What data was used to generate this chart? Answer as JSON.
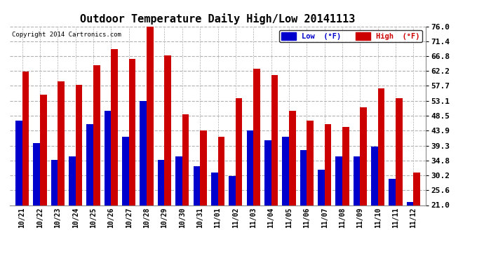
{
  "title": "Outdoor Temperature Daily High/Low 20141113",
  "copyright": "Copyright 2014 Cartronics.com",
  "legend_low": "Low  (°F)",
  "legend_high": "High  (°F)",
  "dates": [
    "10/21",
    "10/22",
    "10/23",
    "10/24",
    "10/25",
    "10/26",
    "10/27",
    "10/28",
    "10/29",
    "10/30",
    "10/31",
    "11/01",
    "11/02",
    "11/03",
    "11/04",
    "11/05",
    "11/06",
    "11/07",
    "11/08",
    "11/09",
    "11/10",
    "11/11",
    "11/12"
  ],
  "low": [
    47.0,
    40.0,
    35.0,
    36.0,
    46.0,
    50.0,
    42.0,
    53.0,
    35.0,
    36.0,
    33.0,
    31.0,
    30.0,
    44.0,
    41.0,
    42.0,
    38.0,
    32.0,
    36.0,
    36.0,
    39.0,
    29.0,
    22.0
  ],
  "high": [
    62.0,
    55.0,
    59.0,
    58.0,
    64.0,
    69.0,
    66.0,
    77.0,
    67.0,
    49.0,
    44.0,
    42.0,
    54.0,
    63.0,
    61.0,
    50.0,
    47.0,
    46.0,
    45.0,
    51.0,
    57.0,
    54.0,
    31.0
  ],
  "ylim": [
    21.0,
    76.0
  ],
  "ymin": 21.0,
  "yticks": [
    21.0,
    25.6,
    30.2,
    34.8,
    39.3,
    43.9,
    48.5,
    53.1,
    57.7,
    62.2,
    66.8,
    71.4,
    76.0
  ],
  "low_color": "#0000cc",
  "high_color": "#cc0000",
  "bg_color": "#ffffff",
  "grid_color": "#b0b0b0",
  "title_fontsize": 11,
  "bar_width": 0.38
}
